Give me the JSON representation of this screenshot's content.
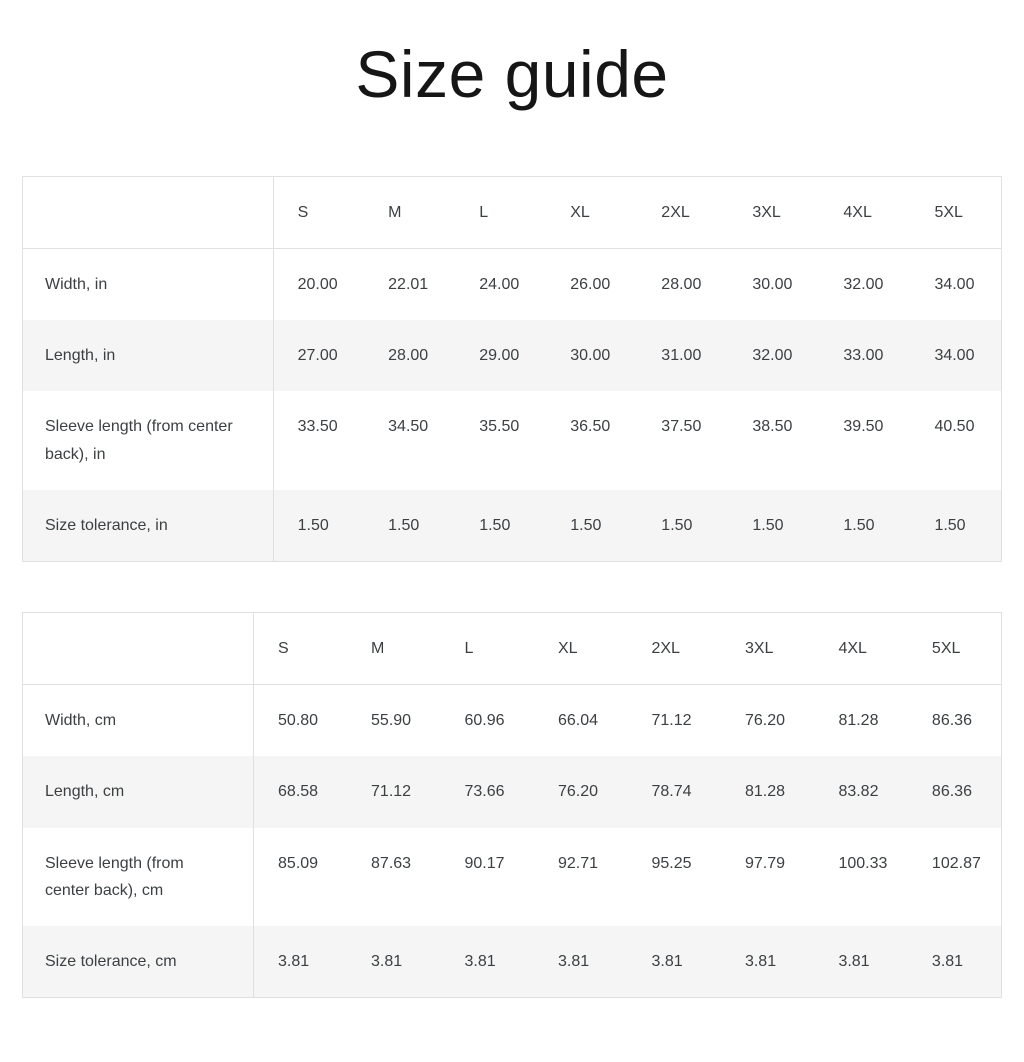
{
  "page": {
    "title": "Size guide"
  },
  "tables": [
    {
      "name": "inches",
      "columns": [
        "",
        "S",
        "M",
        "L",
        "XL",
        "2XL",
        "3XL",
        "4XL",
        "5XL"
      ],
      "rows": [
        {
          "label": "Width, in",
          "values": [
            "20.00",
            "22.01",
            "24.00",
            "26.00",
            "28.00",
            "30.00",
            "32.00",
            "34.00"
          ]
        },
        {
          "label": "Length, in",
          "values": [
            "27.00",
            "28.00",
            "29.00",
            "30.00",
            "31.00",
            "32.00",
            "33.00",
            "34.00"
          ]
        },
        {
          "label": "Sleeve length (from center back), in",
          "values": [
            "33.50",
            "34.50",
            "35.50",
            "36.50",
            "37.50",
            "38.50",
            "39.50",
            "40.50"
          ]
        },
        {
          "label": "Size tolerance, in",
          "values": [
            "1.50",
            "1.50",
            "1.50",
            "1.50",
            "1.50",
            "1.50",
            "1.50",
            "1.50"
          ]
        }
      ]
    },
    {
      "name": "centimeters",
      "columns": [
        "",
        "S",
        "M",
        "L",
        "XL",
        "2XL",
        "3XL",
        "4XL",
        "5XL"
      ],
      "rows": [
        {
          "label": "Width, cm",
          "values": [
            "50.80",
            "55.90",
            "60.96",
            "66.04",
            "71.12",
            "76.20",
            "81.28",
            "86.36"
          ]
        },
        {
          "label": "Length, cm",
          "values": [
            "68.58",
            "71.12",
            "73.66",
            "76.20",
            "78.74",
            "81.28",
            "83.82",
            "86.36"
          ]
        },
        {
          "label": "Sleeve length (from center back), cm",
          "values": [
            "85.09",
            "87.63",
            "90.17",
            "92.71",
            "95.25",
            "97.79",
            "100.33",
            "102.87"
          ]
        },
        {
          "label": "Size tolerance, cm",
          "values": [
            "3.81",
            "3.81",
            "3.81",
            "3.81",
            "3.81",
            "3.81",
            "3.81",
            "3.81"
          ]
        }
      ]
    }
  ],
  "colors": {
    "background": "#ffffff",
    "text": "#3c4043",
    "title_text": "#161616",
    "border": "#e0e0e0",
    "row_stripe": "#f5f5f5"
  }
}
